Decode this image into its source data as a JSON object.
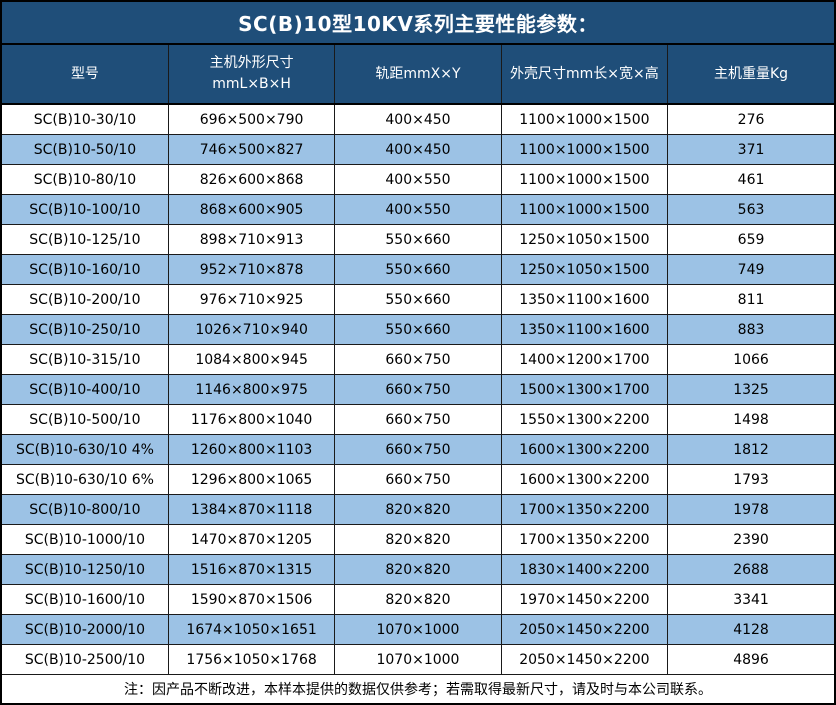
{
  "page": {
    "title": "SC(B)10型10KV系列主要性能参数：",
    "note": "注：因产品不断改进，本样本提供的数据仅供参考；若需取得最新尺寸，请及时与本公司联系。"
  },
  "colors": {
    "header_bg": "#1F4E79",
    "header_text": "#FFFFFF",
    "alt_row_bg": "#9CC2E5",
    "grid_line": "#1A1A1A",
    "body_text": "#000000"
  },
  "table": {
    "header": {
      "col1": "型号",
      "col2_line1": "主机外形尺寸",
      "col2_line2": "mmL×B×H",
      "col3": "轨距mmX×Y",
      "col4": "外壳尺寸mm长×宽×高",
      "col5": "主机重量Kg"
    },
    "rows": [
      [
        "SC(B)10-30/10",
        "696×500×790",
        "400×450",
        "1100×1000×1500",
        "276"
      ],
      [
        "SC(B)10-50/10",
        "746×500×827",
        "400×450",
        "1100×1000×1500",
        "371"
      ],
      [
        "SC(B)10-80/10",
        "826×600×868",
        "400×550",
        "1100×1000×1500",
        "461"
      ],
      [
        "SC(B)10-100/10",
        "868×600×905",
        "400×550",
        "1100×1000×1500",
        "563"
      ],
      [
        "SC(B)10-125/10",
        "898×710×913",
        "550×660",
        "1250×1050×1500",
        "659"
      ],
      [
        "SC(B)10-160/10",
        "952×710×878",
        "550×660",
        "1250×1050×1500",
        "749"
      ],
      [
        "SC(B)10-200/10",
        "976×710×925",
        "550×660",
        "1350×1100×1600",
        "811"
      ],
      [
        "SC(B)10-250/10",
        "1026×710×940",
        "550×660",
        "1350×1100×1600",
        "883"
      ],
      [
        "SC(B)10-315/10",
        "1084×800×945",
        "660×750",
        "1400×1200×1700",
        "1066"
      ],
      [
        "SC(B)10-400/10",
        "1146×800×975",
        "660×750",
        "1500×1300×1700",
        "1325"
      ],
      [
        "SC(B)10-500/10",
        "1176×800×1040",
        "660×750",
        "1550×1300×2200",
        "1498"
      ],
      [
        "SC(B)10-630/10 4%",
        "1260×800×1103",
        "660×750",
        "1600×1300×2200",
        "1812"
      ],
      [
        "SC(B)10-630/10 6%",
        "1296×800×1065",
        "660×750",
        "1600×1300×2200",
        "1793"
      ],
      [
        "SC(B)10-800/10",
        "1384×870×1118",
        "820×820",
        "1700×1350×2200",
        "1978"
      ],
      [
        "SC(B)10-1000/10",
        "1470×870×1205",
        "820×820",
        "1700×1350×2200",
        "2390"
      ],
      [
        "SC(B)10-1250/10",
        "1516×870×1315",
        "820×820",
        "1830×1400×2200",
        "2688"
      ],
      [
        "SC(B)10-1600/10",
        "1590×870×1506",
        "820×820",
        "1970×1450×2200",
        "3341"
      ],
      [
        "SC(B)10-2000/10",
        "1674×1050×1651",
        "1070×1000",
        "2050×1450×2200",
        "4128"
      ],
      [
        "SC(B)10-2500/10",
        "1756×1050×1768",
        "1070×1000",
        "2050×1450×2200",
        "4896"
      ]
    ]
  }
}
